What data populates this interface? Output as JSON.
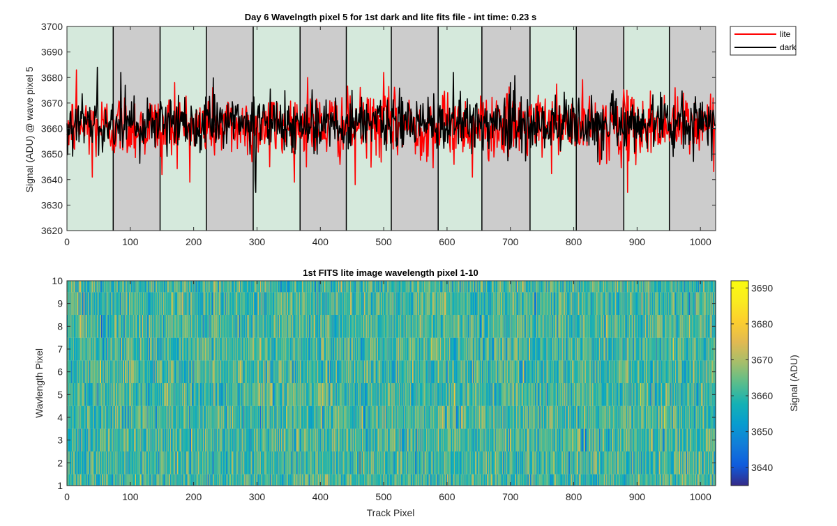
{
  "colors": {
    "lite": "#ff0000",
    "dark": "#000000",
    "band_a": "#d5e9dc",
    "band_b": "#cccccc",
    "axis": "#262626"
  },
  "chart_data": [
    {
      "type": "line",
      "title": "Day 6 Wavelngth pixel 5 for 1st dark and lite fits file - int time: 0.23 s",
      "xlabel": "",
      "ylabel": "Signal (ADU) @ wave pixel 5",
      "xlim": [
        0,
        1024
      ],
      "ylim": [
        3620,
        3700
      ],
      "xticks": [
        0,
        100,
        200,
        300,
        400,
        500,
        600,
        700,
        800,
        900,
        1000
      ],
      "yticks": [
        3620,
        3630,
        3640,
        3650,
        3660,
        3670,
        3680,
        3690,
        3700
      ],
      "legend": {
        "position": "outside-top-right",
        "entries": [
          "lite",
          "dark"
        ]
      },
      "background_bands": {
        "boundaries": [
          0,
          73,
          147,
          220,
          294,
          368,
          441,
          512,
          586,
          655,
          731,
          804,
          879,
          951,
          1024
        ],
        "pattern": [
          "green",
          "gray"
        ]
      },
      "series": [
        {
          "name": "lite",
          "color": "#ff0000",
          "mean": 3661,
          "sd": 6.5,
          "min": 3635,
          "max": 3683,
          "samples_x": [
            0,
            15,
            40,
            150,
            170,
            320,
            380,
            455,
            500,
            640,
            885,
            960,
            1020
          ],
          "samples_y": [
            3658,
            3683,
            3641,
            3642,
            3678,
            3645,
            3680,
            3638,
            3682,
            3641,
            3635,
            3676,
            3672
          ]
        },
        {
          "name": "dark",
          "color": "#000000",
          "mean": 3662,
          "sd": 5.5,
          "min": 3635,
          "max": 3684,
          "samples_x": [
            0,
            48,
            85,
            297,
            298,
            450,
            700,
            1000
          ],
          "samples_y": [
            3662,
            3684,
            3682,
            3640,
            3635,
            3675,
            3678,
            3670
          ]
        }
      ]
    },
    {
      "type": "heatmap",
      "title": "1st FITS lite image wavelength pixel 1-10",
      "xlabel": "Track Pixel",
      "ylabel": "Wavlength Pixel",
      "xlim": [
        0,
        1024
      ],
      "ylim": [
        1,
        10
      ],
      "xticks": [
        0,
        100,
        200,
        300,
        400,
        500,
        600,
        700,
        800,
        900,
        1000
      ],
      "yticks": [
        1,
        2,
        3,
        4,
        5,
        6,
        7,
        8,
        9,
        10
      ],
      "rows": 10,
      "columns": 1024,
      "mean": 3661,
      "sd": 6.5,
      "colorbar": {
        "label": "Signal (ADU)",
        "clim": [
          3635,
          3692
        ],
        "ticks": [
          3640,
          3650,
          3660,
          3670,
          3680,
          3690
        ],
        "colormap": "parula"
      }
    }
  ]
}
